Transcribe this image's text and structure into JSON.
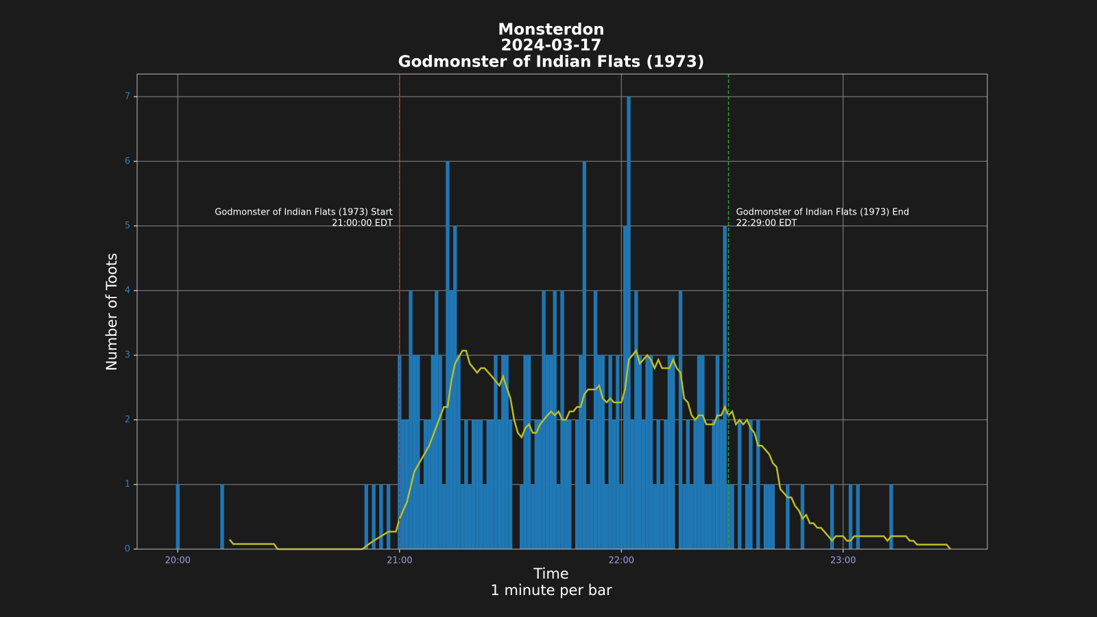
{
  "chart_data": {
    "type": "bar",
    "title": [
      "Monsterdon",
      "2024-03-17",
      "Godmonster of Indian Flats (1973)"
    ],
    "xlabel": [
      "Time",
      "1 minute per bar"
    ],
    "ylabel": "Number of Toots",
    "xlim": [
      "19:49",
      "23:39"
    ],
    "xticks": [
      "20:00",
      "21:00",
      "22:00",
      "23:00"
    ],
    "ylim": [
      0,
      7.35
    ],
    "yticks": [
      0,
      1,
      2,
      3,
      4,
      5,
      6,
      7
    ],
    "grid": true,
    "series": [
      {
        "type": "bar",
        "color": "#1f77b4",
        "x": [
          "20:00",
          "20:12",
          "20:51",
          "20:53",
          "20:55",
          "20:57",
          "21:00",
          "21:01",
          "21:02",
          "21:03",
          "21:04",
          "21:05",
          "21:06",
          "21:07",
          "21:08",
          "21:09",
          "21:10",
          "21:11",
          "21:12",
          "21:13",
          "21:14",
          "21:15",
          "21:16",
          "21:17",
          "21:18",
          "21:19",
          "21:20",
          "21:21",
          "21:22",
          "21:23",
          "21:24",
          "21:25",
          "21:26",
          "21:27",
          "21:28",
          "21:29",
          "21:30",
          "21:33",
          "21:34",
          "21:35",
          "21:36",
          "21:37",
          "21:38",
          "21:39",
          "21:40",
          "21:41",
          "21:42",
          "21:43",
          "21:44",
          "21:45",
          "21:46",
          "21:48",
          "21:49",
          "21:50",
          "21:51",
          "21:52",
          "21:53",
          "21:54",
          "21:55",
          "21:56",
          "21:57",
          "21:58",
          "21:59",
          "22:00",
          "22:01",
          "22:02",
          "22:03",
          "22:04",
          "22:05",
          "22:06",
          "22:07",
          "22:08",
          "22:09",
          "22:10",
          "22:11",
          "22:12",
          "22:13",
          "22:14",
          "22:16",
          "22:17",
          "22:18",
          "22:19",
          "22:20",
          "22:21",
          "22:22",
          "22:23",
          "22:24",
          "22:25",
          "22:26",
          "22:27",
          "22:28",
          "22:29",
          "22:30",
          "22:32",
          "22:34",
          "22:35",
          "22:37",
          "22:39",
          "22:40",
          "22:41",
          "22:45",
          "22:49",
          "22:57",
          "23:02",
          "23:04",
          "23:13"
        ],
        "values": [
          1,
          1,
          1,
          1,
          1,
          1,
          3,
          2,
          2,
          4,
          3,
          3,
          1,
          2,
          2,
          3,
          4,
          3,
          1,
          6,
          4,
          5,
          3,
          1,
          2,
          1,
          2,
          2,
          2,
          1,
          2,
          2,
          3,
          2,
          3,
          3,
          2,
          1,
          3,
          3,
          1,
          2,
          2,
          4,
          3,
          3,
          4,
          1,
          4,
          2,
          2,
          2,
          3,
          6,
          1,
          2,
          4,
          3,
          3,
          1,
          3,
          2,
          3,
          1,
          5,
          7,
          2,
          4,
          3,
          2,
          3,
          3,
          1,
          2,
          1,
          2,
          3,
          3,
          4,
          1,
          2,
          1,
          2,
          3,
          3,
          1,
          1,
          2,
          3,
          2,
          5,
          1,
          1,
          2,
          1,
          2,
          2,
          1,
          1,
          1,
          1,
          1,
          1,
          1,
          1,
          1
        ]
      },
      {
        "type": "line",
        "color": "#bcbd22",
        "x": [
          "20:14",
          "20:15",
          "20:26",
          "20:27",
          "20:50",
          "20:51",
          "20:53",
          "20:55",
          "20:57",
          "20:59",
          "21:00",
          "21:02",
          "21:04",
          "21:06",
          "21:08",
          "21:10",
          "21:12",
          "21:13",
          "21:14",
          "21:15",
          "21:17",
          "21:18",
          "21:19",
          "21:21",
          "21:22",
          "21:23",
          "21:25",
          "21:27",
          "21:28",
          "21:30",
          "21:31",
          "21:32",
          "21:33",
          "21:34",
          "21:35",
          "21:36",
          "21:37",
          "21:38",
          "21:40",
          "21:41",
          "21:42",
          "21:43",
          "21:44",
          "21:45",
          "21:46",
          "21:47",
          "21:48",
          "21:49",
          "21:50",
          "21:51",
          "21:53",
          "21:54",
          "21:55",
          "21:56",
          "21:57",
          "21:58",
          "22:00",
          "22:01",
          "22:02",
          "22:04",
          "22:05",
          "22:07",
          "22:08",
          "22:09",
          "22:10",
          "22:11",
          "22:13",
          "22:14",
          "22:15",
          "22:16",
          "22:17",
          "22:18",
          "22:19",
          "22:20",
          "22:21",
          "22:22",
          "22:23",
          "22:25",
          "22:26",
          "22:27",
          "22:28",
          "22:29",
          "22:30",
          "22:31",
          "22:32",
          "22:33",
          "22:34",
          "22:35",
          "22:36",
          "22:37",
          "22:38",
          "22:40",
          "22:41",
          "22:42",
          "22:43",
          "22:45",
          "22:46",
          "22:47",
          "22:48",
          "22:49",
          "22:50",
          "22:51",
          "22:52",
          "22:53",
          "22:54",
          "22:56",
          "22:57",
          "22:58",
          "23:00",
          "23:01",
          "23:02",
          "23:03",
          "23:11",
          "23:12",
          "23:13",
          "23:17",
          "23:18",
          "23:19",
          "23:20",
          "23:28",
          "23:29"
        ],
        "values": [
          0.15,
          0.08,
          0.08,
          0,
          0,
          0.05,
          0.13,
          0.2,
          0.27,
          0.27,
          0.47,
          0.73,
          1.2,
          1.4,
          1.6,
          1.9,
          2.2,
          2.2,
          2.6,
          2.87,
          3.07,
          3.07,
          2.87,
          2.73,
          2.8,
          2.8,
          2.67,
          2.53,
          2.67,
          2.33,
          2.0,
          1.8,
          1.73,
          1.87,
          1.93,
          1.8,
          1.8,
          1.93,
          2.07,
          2.13,
          2.07,
          2.13,
          2.0,
          2.0,
          2.13,
          2.13,
          2.2,
          2.2,
          2.4,
          2.47,
          2.47,
          2.53,
          2.33,
          2.27,
          2.33,
          2.27,
          2.27,
          2.47,
          2.93,
          3.07,
          2.87,
          3.0,
          2.93,
          2.8,
          2.93,
          2.8,
          2.8,
          2.93,
          2.8,
          2.73,
          2.33,
          2.27,
          2.07,
          2.0,
          2.07,
          2.07,
          1.93,
          1.93,
          2.07,
          2.07,
          2.2,
          2.07,
          2.13,
          1.93,
          2.0,
          1.93,
          2.0,
          1.87,
          1.8,
          1.6,
          1.6,
          1.47,
          1.33,
          1.27,
          0.93,
          0.8,
          0.8,
          0.67,
          0.6,
          0.47,
          0.53,
          0.4,
          0.4,
          0.33,
          0.33,
          0.2,
          0.13,
          0.2,
          0.2,
          0.13,
          0.13,
          0.2,
          0.2,
          0.13,
          0.2,
          0.2,
          0.13,
          0.13,
          0.07,
          0.07,
          0
        ]
      }
    ],
    "annotations": [
      {
        "x": "21:00",
        "color": "#e41a1c",
        "side": "left",
        "text": [
          "Godmonster of Indian Flats (1973) Start",
          "21:00:00 EDT"
        ]
      },
      {
        "x": "22:29",
        "color": "#2ca02c",
        "side": "right",
        "text": [
          "Godmonster of Indian Flats (1973) End",
          "22:29:00 EDT"
        ]
      }
    ]
  }
}
